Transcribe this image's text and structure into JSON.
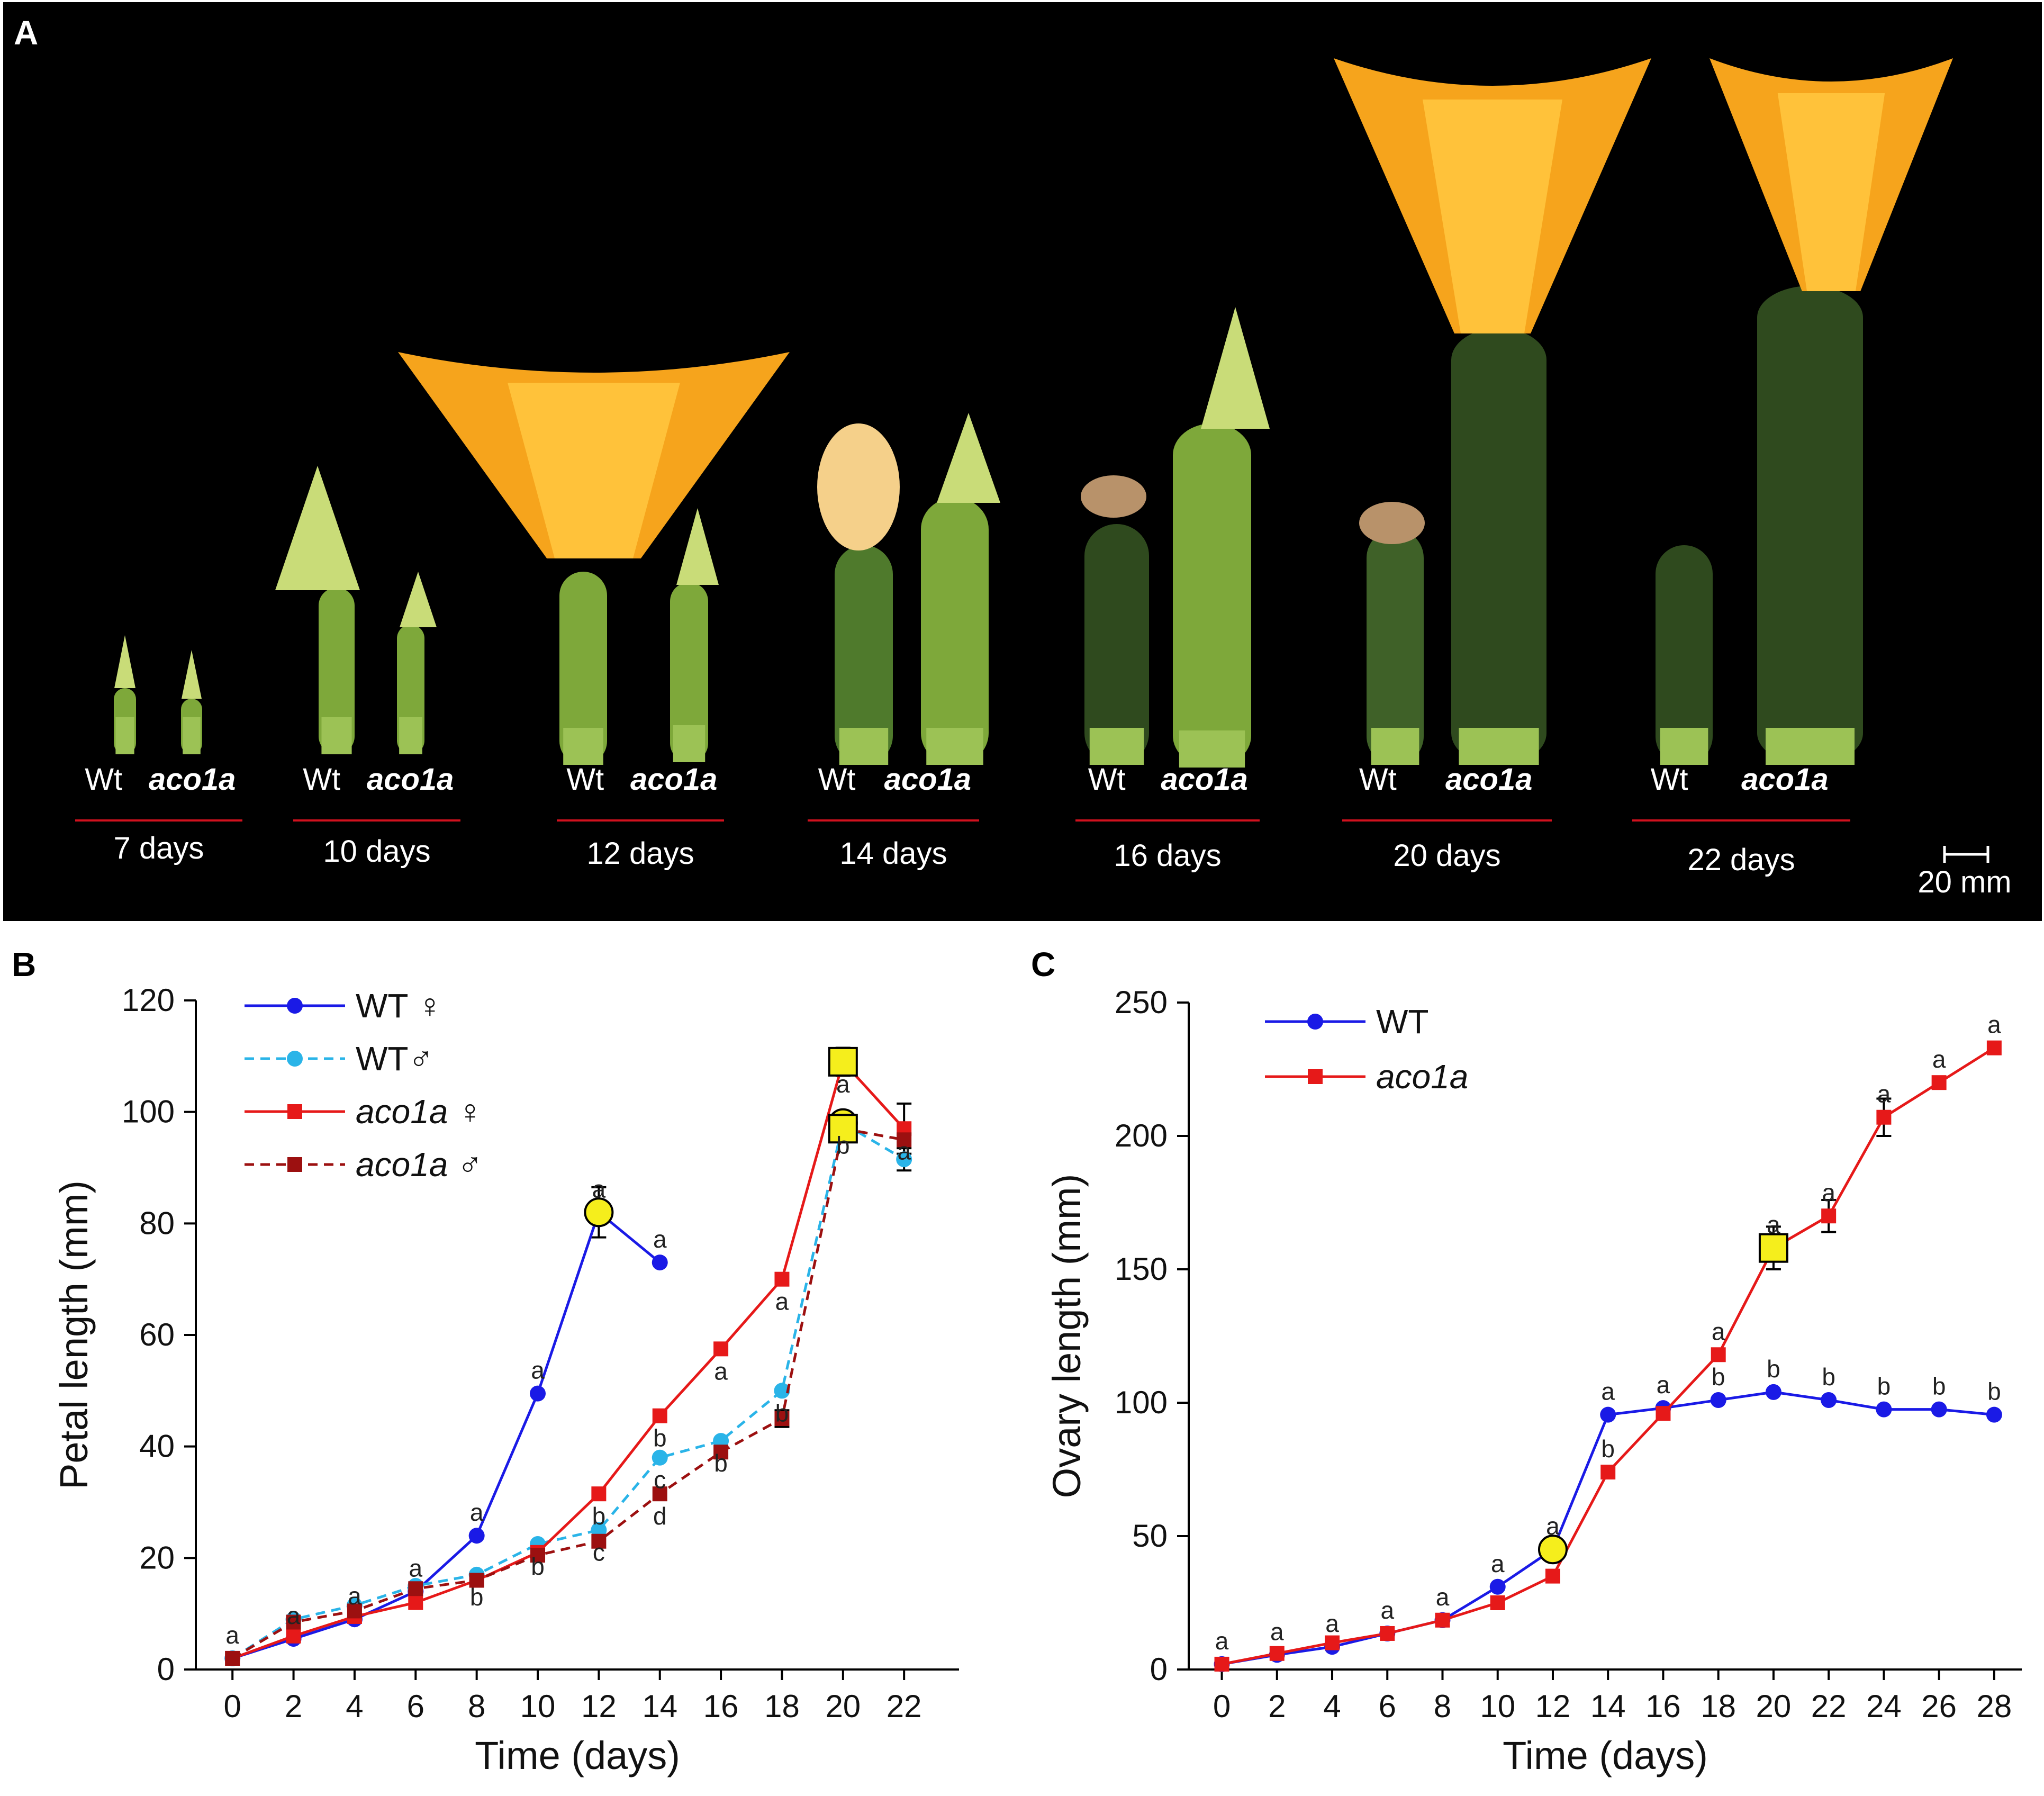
{
  "panels": {
    "a": {
      "letter": "A"
    },
    "b": {
      "letter": "B"
    },
    "c": {
      "letter": "C"
    }
  },
  "photo": {
    "groups": [
      {
        "days_label": "7 days",
        "wt_label": "Wt",
        "mut_label": "aco1a"
      },
      {
        "days_label": "10 days",
        "wt_label": "Wt",
        "mut_label": "aco1a"
      },
      {
        "days_label": "12 days",
        "wt_label": "Wt",
        "mut_label": "aco1a"
      },
      {
        "days_label": "14 days",
        "wt_label": "Wt",
        "mut_label": "aco1a"
      },
      {
        "days_label": "16 days",
        "wt_label": "Wt",
        "mut_label": "aco1a"
      },
      {
        "days_label": "20 days",
        "wt_label": "Wt",
        "mut_label": "aco1a"
      },
      {
        "days_label": "22 days",
        "wt_label": "Wt",
        "mut_label": "aco1a"
      }
    ],
    "scale_label": "20 mm",
    "colors": {
      "petal": "#f6a41c",
      "petal_light": "#ffc23a",
      "bud": "#c9dc78",
      "fruit_light": "#7ea83a",
      "fruit_dark": "#2f4a1e",
      "dried": "#b8926a",
      "underline": "#d1111e"
    }
  },
  "chart_data": [
    {
      "id": "B",
      "type": "line",
      "xlabel": "Time (days)",
      "ylabel": "Petal length (mm)",
      "xlim": [
        -1.2,
        23.8
      ],
      "ylim": [
        0,
        120
      ],
      "xticks": [
        0,
        2,
        4,
        6,
        8,
        10,
        12,
        14,
        16,
        18,
        20,
        22
      ],
      "yticks": [
        0,
        20,
        40,
        60,
        80,
        100,
        120
      ],
      "series": [
        {
          "name": "WT ♀",
          "color": "#1a1ae6",
          "marker": "circle",
          "dash": false,
          "x": [
            0,
            2,
            4,
            6,
            8,
            10,
            12,
            14
          ],
          "y": [
            2,
            5.5,
            9,
            14,
            24,
            49.5,
            82,
            73
          ],
          "labels": [
            "a",
            "a",
            "a",
            "a",
            "a",
            "a",
            "a",
            "a"
          ]
        },
        {
          "name": "WT♂",
          "color": "#2ab4e8",
          "marker": "circle",
          "dash": true,
          "x": [
            0,
            2,
            4,
            6,
            8,
            10,
            12,
            14,
            16,
            18,
            20,
            22
          ],
          "y": [
            2,
            9,
            11.5,
            15,
            17,
            22.5,
            25,
            38,
            41,
            50,
            98,
            91.5
          ],
          "labels": [
            "",
            "",
            "",
            "",
            "b",
            "b",
            "c",
            "c",
            "b",
            "b",
            "b",
            ""
          ]
        },
        {
          "name": "aco1a ♀",
          "color": "#e61919",
          "marker": "square",
          "dash": false,
          "x": [
            0,
            2,
            4,
            6,
            8,
            10,
            12,
            14,
            16,
            18,
            20,
            22
          ],
          "y": [
            2,
            6,
            9.5,
            12,
            16,
            21,
            31.5,
            45.5,
            57.5,
            70,
            109,
            97
          ],
          "labels": [
            "",
            "",
            "",
            "",
            "",
            "",
            "b",
            "b",
            "a",
            "a",
            "a",
            "a"
          ]
        },
        {
          "name": "aco1a ♂",
          "color": "#9c1010",
          "marker": "square",
          "dash": true,
          "x": [
            0,
            2,
            4,
            6,
            8,
            10,
            12,
            14,
            16,
            18,
            20,
            22
          ],
          "y": [
            2,
            8.5,
            10.5,
            14.5,
            16,
            20.5,
            23,
            31.5,
            39,
            45,
            97,
            95
          ],
          "labels": [
            "",
            "",
            "",
            "",
            "",
            "",
            "",
            "d",
            "",
            "",
            "",
            ""
          ]
        }
      ],
      "highlights": [
        {
          "shape": "circle",
          "x": 12,
          "y": 82
        },
        {
          "shape": "square",
          "x": 20,
          "y": 109
        },
        {
          "shape": "circle",
          "x": 20,
          "y": 98
        },
        {
          "shape": "square",
          "x": 20,
          "y": 97
        }
      ],
      "error_bars": [
        {
          "x": 12,
          "y": 82,
          "err": 4.5
        },
        {
          "x": 20,
          "y": 109,
          "err": 2.5
        },
        {
          "x": 22,
          "y": 97,
          "err": 4.5
        },
        {
          "x": 22,
          "y": 91.5,
          "err": 2
        },
        {
          "x": 18,
          "y": 45,
          "err": 1.5
        }
      ]
    },
    {
      "id": "C",
      "type": "line",
      "xlabel": "Time (days)",
      "ylabel": "Ovary length (mm)",
      "xlim": [
        -1.2,
        29.0
      ],
      "ylim": [
        0,
        250
      ],
      "xticks": [
        0,
        2,
        4,
        6,
        8,
        10,
        12,
        14,
        16,
        18,
        20,
        22,
        24,
        26,
        28
      ],
      "yticks": [
        0,
        50,
        100,
        150,
        200,
        250
      ],
      "series": [
        {
          "name": "WT",
          "color": "#1a1ae6",
          "marker": "circle",
          "dash": false,
          "x": [
            0,
            2,
            4,
            6,
            8,
            10,
            12,
            14,
            16,
            18,
            20,
            22,
            24,
            26,
            28
          ],
          "y": [
            2,
            5.5,
            8.5,
            13.5,
            18.5,
            31,
            45,
            95.5,
            98,
            101,
            104,
            101,
            97.5,
            97.5,
            95.5
          ],
          "labels": [
            "a",
            "a",
            "a",
            "a",
            "a",
            "a",
            "a",
            "a",
            "a",
            "b",
            "b",
            "b",
            "b",
            "b",
            "b"
          ]
        },
        {
          "name": "aco1a",
          "color": "#e61919",
          "marker": "square",
          "dash": false,
          "x": [
            0,
            2,
            4,
            6,
            8,
            10,
            12,
            14,
            16,
            18,
            20,
            22,
            24,
            26,
            28
          ],
          "y": [
            2,
            6,
            10,
            13.5,
            18.5,
            25,
            35,
            74,
            96,
            118,
            158,
            170,
            207,
            220,
            233
          ],
          "labels": [
            "",
            "",
            "",
            "",
            "",
            "",
            "",
            "b",
            "",
            "a",
            "a",
            "a",
            "a",
            "a",
            "a"
          ]
        }
      ],
      "highlights": [
        {
          "shape": "circle",
          "x": 12,
          "y": 45
        },
        {
          "shape": "square",
          "x": 20,
          "y": 158
        }
      ],
      "error_bars": [
        {
          "x": 20,
          "y": 158,
          "err": 8
        },
        {
          "x": 22,
          "y": 170,
          "err": 6
        },
        {
          "x": 24,
          "y": 207,
          "err": 7
        }
      ]
    }
  ]
}
